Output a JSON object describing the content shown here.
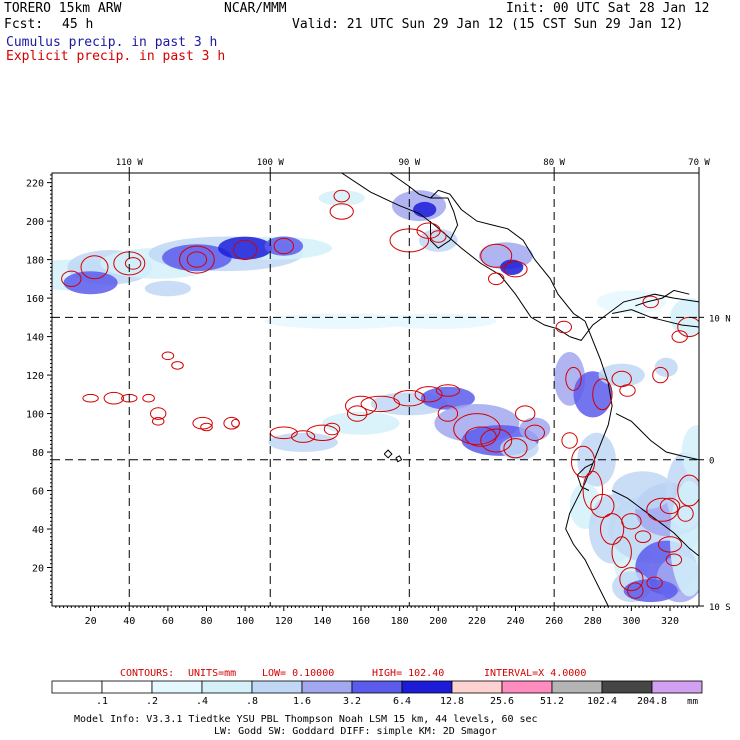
{
  "header": {
    "model": "TORERO  15km ARW",
    "org": "NCAR/MMM",
    "init": "Init: 00 UTC Sat 28 Jan 12",
    "fcst_label": "Fcst:",
    "fcst_hours": "45 h",
    "valid": "Valid: 21 UTC Sun 29 Jan 12 (15 CST Sun 29 Jan 12)",
    "cumulus": "Cumulus precip. in past 3 h",
    "explicit": "Explicit precip. in past 3 h"
  },
  "colors": {
    "cumulus": "#1a1aa0",
    "explicit": "#d40000",
    "grid": "#000000"
  },
  "chart_data": {
    "type": "heatmap",
    "title": "Cumulus precip. in past 3 h / Explicit precip. in past 3 h",
    "x_ticks": [
      20,
      40,
      60,
      80,
      100,
      120,
      140,
      160,
      180,
      200,
      220,
      240,
      260,
      280,
      300,
      320
    ],
    "y_ticks": [
      20,
      40,
      60,
      80,
      100,
      120,
      140,
      160,
      180,
      200,
      220
    ],
    "xlim": [
      0,
      335
    ],
    "ylim": [
      0,
      225
    ],
    "lon_labels": [
      "110 W",
      "100 W",
      "90 W",
      "80 W",
      "70 W"
    ],
    "lon_grid_x": [
      40,
      113,
      185,
      260
    ],
    "lat_labels": [
      "10 N",
      "0",
      "10 S"
    ],
    "lat_grid_y": [
      150,
      76
    ],
    "contours": {
      "label": "CONTOURS:",
      "units": "UNITS=mm",
      "low": "LOW= 0.10000",
      "high": "HIGH= 102.40",
      "interval": "INTERVAL=X  4.0000"
    },
    "colorbar": {
      "labels": [
        ".1",
        ".2",
        ".4",
        ".8",
        "1.6",
        "3.2",
        "6.4",
        "12.8",
        "25.6",
        "51.2",
        "102.4",
        "204.8"
      ],
      "colors": [
        "#ffffff",
        "#ffffff",
        "#e6f8ff",
        "#d4f1fa",
        "#c0d8f5",
        "#a2a8f0",
        "#5c5cec",
        "#1c1cd8",
        "#ffd2d2",
        "#ff8cbe",
        "#b4b4b4",
        "#464646",
        "#d2a0f0"
      ],
      "unit": "mm"
    }
  },
  "footer": {
    "line1": "Model Info: V3.3.1    Tiedtke YSU PBL  Thompson    Noah LSM  15 km,   44 levels,   60 sec",
    "line2": "LW: Godd SW: Goddard DIFF: simple KM: 2D Smagor"
  }
}
